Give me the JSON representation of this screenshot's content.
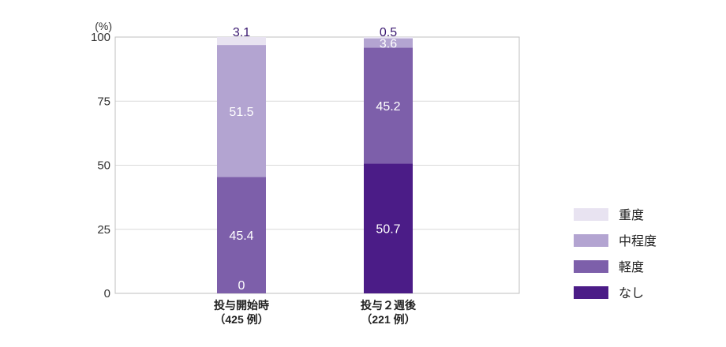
{
  "chart_data": {
    "type": "bar",
    "stacked": true,
    "unit_label": "(%)",
    "ylim": [
      0,
      100
    ],
    "yticks": [
      0,
      25,
      50,
      75,
      100
    ],
    "grid": true,
    "legend_position": "right",
    "categories": [
      [
        "投与開始時",
        "（425 例）"
      ],
      [
        "投与２週後",
        "（221 例）"
      ]
    ],
    "series": [
      {
        "name": "なし",
        "color": "#4b1c87",
        "values": [
          0,
          50.7
        ],
        "labels": [
          "0",
          "50.7"
        ]
      },
      {
        "name": "軽度",
        "color": "#7d5faa",
        "values": [
          45.4,
          45.2
        ],
        "labels": [
          "45.4",
          "45.2"
        ]
      },
      {
        "name": "中程度",
        "color": "#b3a4d1",
        "values": [
          51.5,
          3.6
        ],
        "labels": [
          "51.5",
          "3.6"
        ]
      },
      {
        "name": "重度",
        "color": "#e8e3f1",
        "values": [
          3.1,
          0.5
        ],
        "labels": [
          "3.1",
          "0.5"
        ]
      }
    ],
    "legend_order": [
      3,
      2,
      1,
      0
    ]
  }
}
